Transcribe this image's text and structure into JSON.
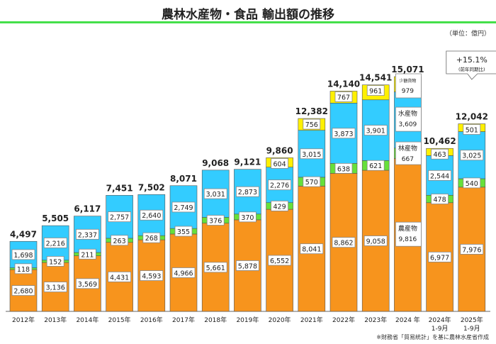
{
  "title": "農林水産物・食品 輸出額の推移",
  "unit": "（単位：億円）",
  "note": "※財務省「貿易統計」を基に農林水産省作成",
  "colors": {
    "agri": "#F7941D",
    "forest": "#66E03A",
    "fish": "#33CCFF",
    "small": "#FFF000"
  },
  "chart_data": {
    "type": "bar",
    "stacked": true,
    "grid": false,
    "categories": [
      "2012年",
      "2013年",
      "2014年",
      "2015年",
      "2016年",
      "2017年",
      "2018年",
      "2019年",
      "2020年",
      "2021年",
      "2022年",
      "2023年",
      "2024 年",
      "2024年\n1-9月",
      "2025年\n1-9月"
    ],
    "series": [
      {
        "name": "農産物",
        "values": [
          2680,
          3136,
          3569,
          4431,
          4593,
          4966,
          5661,
          5878,
          6552,
          8041,
          8862,
          9058,
          9816,
          6977,
          7976
        ]
      },
      {
        "name": "林産物",
        "values": [
          118,
          152,
          211,
          263,
          268,
          355,
          376,
          370,
          429,
          570,
          638,
          621,
          667,
          478,
          540
        ]
      },
      {
        "name": "水産物",
        "values": [
          1698,
          2216,
          2337,
          2757,
          2640,
          2749,
          3031,
          2873,
          2276,
          3015,
          3873,
          3901,
          3609,
          2544,
          3025
        ]
      },
      {
        "name": "少額貨物",
        "values": [
          null,
          null,
          null,
          null,
          null,
          null,
          null,
          null,
          604,
          756,
          767,
          961,
          979,
          463,
          501
        ]
      }
    ],
    "totals": [
      "4,497",
      "5,505",
      "6,117",
      "7,451",
      "7,502",
      "8,071",
      "9,068",
      "9,121",
      "9,860",
      "12,382",
      "14,140",
      "14,541",
      "15,071",
      "10,462",
      "12,042"
    ],
    "ylim": [
      0,
      15071
    ],
    "annotation": {
      "value": "+15.1%",
      "sub": "(前年同期比)"
    }
  }
}
